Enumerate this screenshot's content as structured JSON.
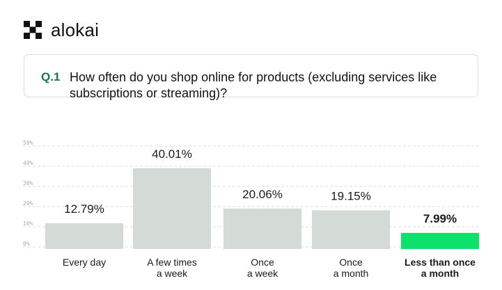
{
  "brand": {
    "name": "alokai",
    "icon": "alokai-logo-mark",
    "color": "#111111"
  },
  "question": {
    "number": "Q.1",
    "text": "How often do you shop online for products (excluding services like subscriptions or streaming)?",
    "number_color": "#157a45"
  },
  "chart_data": {
    "type": "bar",
    "title": "",
    "xlabel": "",
    "ylabel": "",
    "ylim": [
      0,
      50
    ],
    "yticks": [
      0,
      10,
      20,
      30,
      40,
      50
    ],
    "ytick_labels": [
      "0%",
      "10%",
      "20%",
      "30%",
      "40%",
      "50%"
    ],
    "grid": "horizontal dashed",
    "categories": [
      [
        "Every day"
      ],
      [
        "A few times",
        "a week"
      ],
      [
        "Once",
        "a week"
      ],
      [
        "Once",
        "a month"
      ],
      [
        "Less than once",
        "a month"
      ]
    ],
    "values": [
      12.79,
      40.01,
      20.06,
      19.15,
      7.99
    ],
    "value_labels": [
      "12.79%",
      "40.01%",
      "20.06%",
      "19.15%",
      "7.99%"
    ],
    "highlight_index": 4,
    "colors": {
      "bar": "#d4dbd6",
      "highlight": "#0ee16b",
      "grid": "#dedede",
      "tick": "#a8aaa8"
    }
  }
}
